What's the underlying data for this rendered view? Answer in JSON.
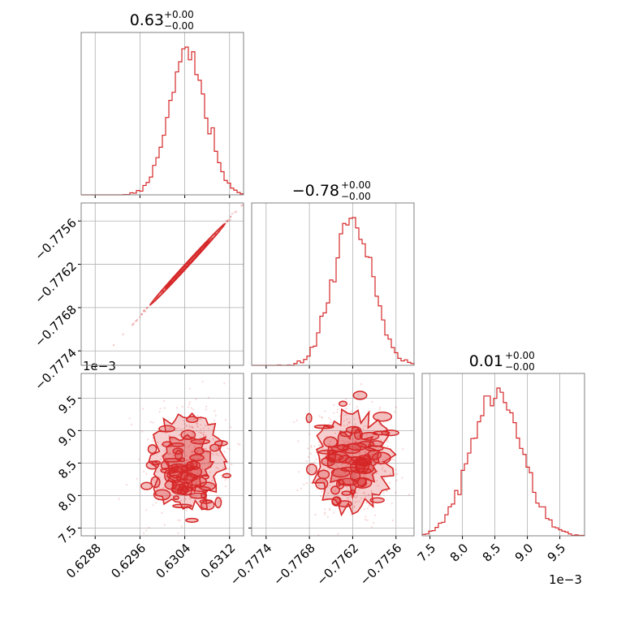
{
  "chart_data": {
    "type": "corner",
    "color": "#d62728",
    "grid": true,
    "titles": [
      {
        "value": "0.63",
        "plus": "+0.00",
        "minus": "−0.00"
      },
      {
        "value": "−0.78",
        "plus": "+0.00",
        "minus": "−0.00"
      },
      {
        "value": "0.01",
        "plus": "+0.00",
        "minus": "−0.00"
      }
    ],
    "exponent_label": "1e−3",
    "params": [
      {
        "range": [
          0.62855,
          0.63145
        ],
        "ticks": [
          0.6288,
          0.6296,
          0.6304,
          0.6312
        ],
        "tick_labels": [
          "0.6288",
          "0.6296",
          "0.6304",
          "0.6312"
        ]
      },
      {
        "range": [
          -0.7776,
          -0.77535
        ],
        "ticks": [
          -0.7774,
          -0.7768,
          -0.7762,
          -0.7756
        ],
        "tick_labels": [
          "−0.7774",
          "−0.7768",
          "−0.7762",
          "−0.7756"
        ]
      },
      {
        "range": [
          7.38,
          9.88
        ],
        "ticks": [
          7.5,
          8.0,
          8.5,
          9.0,
          9.5
        ],
        "tick_labels": [
          "7.5",
          "8.0",
          "8.5",
          "9.0",
          "9.5"
        ],
        "scale": 0.001
      }
    ],
    "histograms": [
      {
        "param": 0,
        "center": 0.63045,
        "sigma": 0.00032,
        "bins": 50
      },
      {
        "param": 1,
        "center": -0.7762,
        "sigma": 0.00027,
        "bins": 50
      },
      {
        "param": 2,
        "center": 8.52,
        "sigma": 0.38,
        "bins": 50
      }
    ],
    "scatter_panels": [
      {
        "x": 0,
        "y": 1,
        "shape": "narrow-ellipse"
      },
      {
        "x": 0,
        "y": 2,
        "shape": "blob"
      },
      {
        "x": 1,
        "y": 2,
        "shape": "blob"
      }
    ]
  }
}
